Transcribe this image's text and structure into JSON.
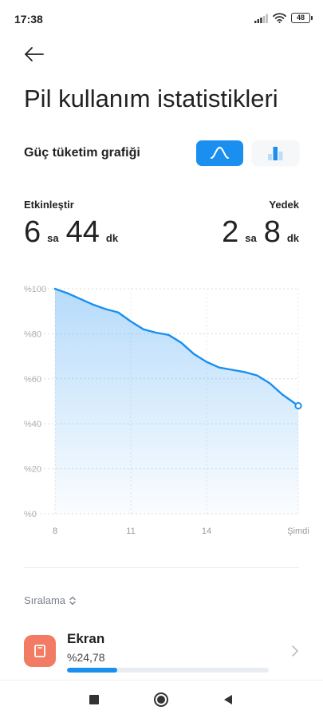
{
  "status": {
    "time": "17:38",
    "battery": "48",
    "icons": [
      "signal-icon",
      "wifi-icon",
      "battery-icon"
    ]
  },
  "header": {
    "back_icon": "back-arrow-icon",
    "title": "Pil kullanım istatistikleri"
  },
  "section": {
    "title": "Güç tüketim grafiği",
    "view_toggle": {
      "selected": "line",
      "options": [
        "line-chart-icon",
        "bar-chart-icon"
      ]
    }
  },
  "stats": {
    "active": {
      "label": "Etkinleştir",
      "hours": "6",
      "hours_unit": "sa",
      "minutes": "44",
      "minutes_unit": "dk"
    },
    "standby": {
      "label": "Yedek",
      "hours": "2",
      "hours_unit": "sa",
      "minutes": "8",
      "minutes_unit": "dk"
    }
  },
  "chart_data": {
    "type": "area",
    "title": "",
    "xlabel": "",
    "ylabel": "",
    "x_ticks": [
      {
        "value": 8,
        "label": "8"
      },
      {
        "value": 11,
        "label": "11"
      },
      {
        "value": 14,
        "label": "14"
      },
      {
        "value": 17.63,
        "label": "Şimdi"
      }
    ],
    "y_ticks": [
      "%100",
      "%80",
      "%60",
      "%40",
      "%20",
      "%0"
    ],
    "y_tick_values": [
      100,
      80,
      60,
      40,
      20,
      0
    ],
    "xlim": [
      8,
      17.63
    ],
    "ylim": [
      0,
      100
    ],
    "grid": true,
    "color": "#1a8ff0",
    "series": [
      {
        "x": [
          8,
          8.5,
          9,
          9.5,
          10,
          10.5,
          11,
          11.5,
          12,
          12.5,
          13,
          13.5,
          14,
          14.5,
          15,
          15.5,
          16,
          16.5,
          17,
          17.63
        ],
        "y": [
          100,
          98,
          95.5,
          93,
          91,
          89.5,
          85.5,
          82,
          80.5,
          79.5,
          76,
          71,
          67.5,
          65,
          64,
          63,
          61.5,
          58,
          53,
          48
        ]
      }
    ]
  },
  "sort": {
    "label": "Sıralama"
  },
  "apps": [
    {
      "name": "Ekran",
      "percent_label": "%24,78",
      "percent": 24.78,
      "icon": "screen-icon",
      "color": "#f27b63"
    }
  ],
  "navbar": {
    "icons": [
      "recents-square-icon",
      "home-circle-icon",
      "back-triangle-icon"
    ]
  }
}
